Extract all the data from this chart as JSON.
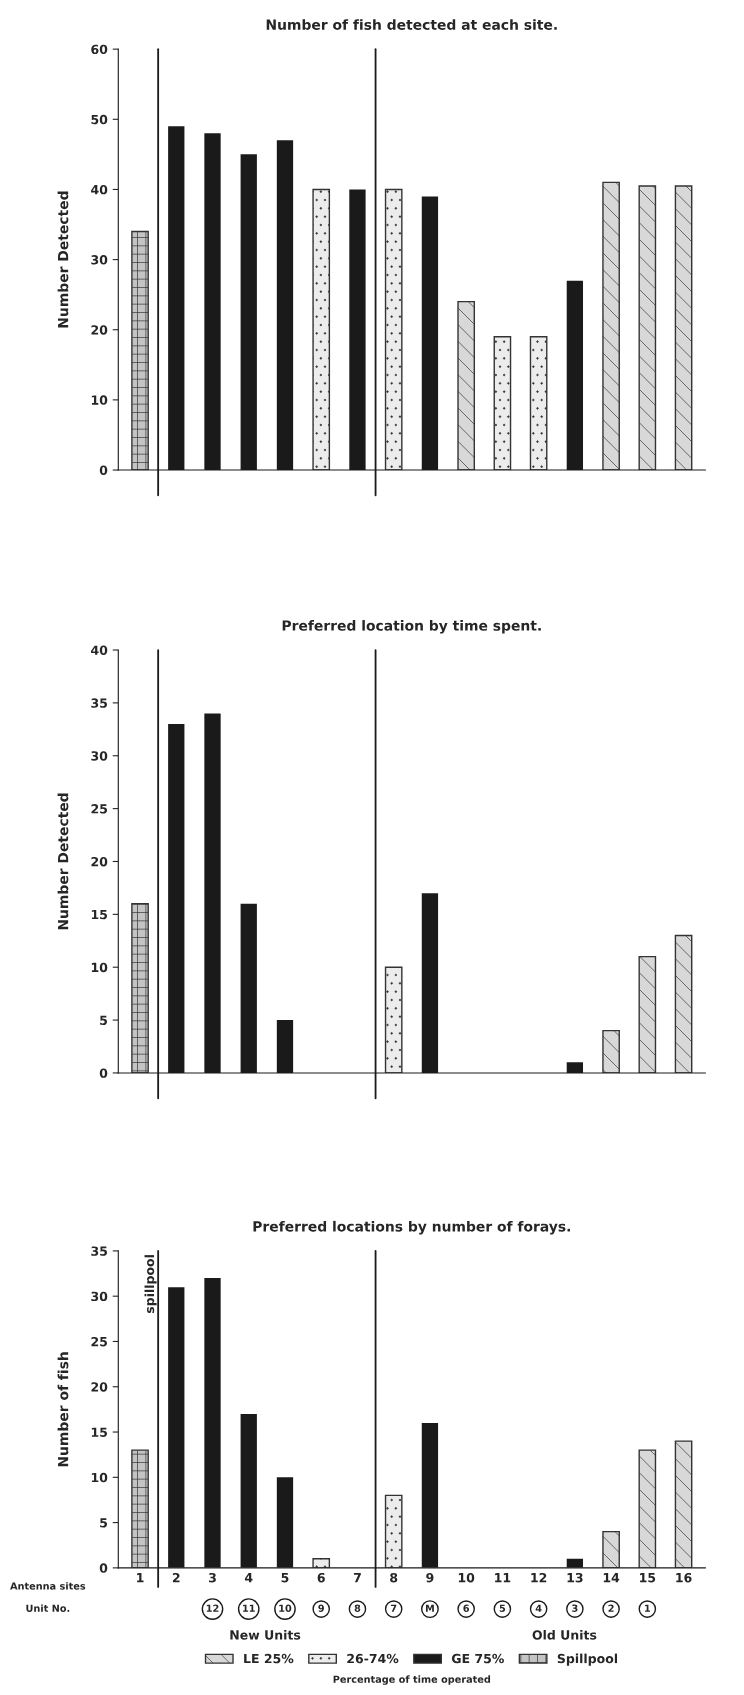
{
  "chart_data": [
    {
      "type": "bar",
      "title": "Number of fish detected at each site.",
      "ylabel": "Number Detected",
      "x": [
        1,
        2,
        3,
        4,
        5,
        6,
        7,
        8,
        9,
        10,
        11,
        12,
        13,
        14,
        15,
        16
      ],
      "xlim": [
        0.4,
        16.6
      ],
      "ylim": [
        0,
        60
      ],
      "yticks": [
        0,
        10,
        20,
        30,
        40,
        50,
        60
      ],
      "series": [
        {
          "color": "#d8d8d8",
          "values": [
            null,
            null,
            null,
            null,
            null,
            null,
            null,
            null,
            null,
            24,
            null,
            null,
            null,
            41,
            40.5,
            40.5
          ]
        },
        {
          "color": "#ececec",
          "values": [
            null,
            null,
            null,
            null,
            null,
            40,
            null,
            40,
            null,
            null,
            19,
            19,
            null,
            null,
            null,
            null
          ]
        },
        {
          "color": "#1a1a1a",
          "values": [
            null,
            49,
            48,
            45,
            47,
            null,
            40,
            null,
            39,
            null,
            null,
            null,
            27,
            null,
            null,
            null
          ]
        },
        {
          "color": "#c4c4c4",
          "values": [
            34,
            null,
            null,
            null,
            null,
            null,
            null,
            null,
            null,
            null,
            null,
            null,
            null,
            null,
            null,
            null
          ]
        }
      ],
      "ref_lines": [
        {
          "axis": "x",
          "value": 1.5
        },
        {
          "axis": "x",
          "value": 7.5
        }
      ],
      "tick_labels": "y",
      "grid": false,
      "legend": false
    },
    {
      "type": "bar",
      "title": "Preferred location by time spent.",
      "ylabel": "Number Detected",
      "x": [
        1,
        2,
        3,
        4,
        5,
        6,
        7,
        8,
        9,
        10,
        11,
        12,
        13,
        14,
        15,
        16
      ],
      "xlim": [
        0.4,
        16.6
      ],
      "ylim": [
        0,
        40
      ],
      "yticks": [
        0,
        5,
        10,
        15,
        20,
        25,
        30,
        35,
        40
      ],
      "series": [
        {
          "color": "#d8d8d8",
          "values": [
            null,
            null,
            null,
            null,
            null,
            null,
            null,
            null,
            null,
            0,
            null,
            null,
            null,
            4,
            11,
            13
          ]
        },
        {
          "color": "#ececec",
          "values": [
            null,
            null,
            null,
            null,
            null,
            0,
            null,
            10,
            null,
            null,
            0,
            0,
            null,
            null,
            null,
            null
          ]
        },
        {
          "color": "#1a1a1a",
          "values": [
            null,
            33,
            34,
            16,
            5,
            null,
            0,
            null,
            17,
            null,
            null,
            null,
            1,
            null,
            null,
            null
          ]
        },
        {
          "color": "#c4c4c4",
          "values": [
            16,
            null,
            null,
            null,
            null,
            null,
            null,
            null,
            null,
            null,
            null,
            null,
            null,
            null,
            null,
            null
          ]
        }
      ],
      "ref_lines": [
        {
          "axis": "x",
          "value": 1.5
        },
        {
          "axis": "x",
          "value": 7.5
        }
      ],
      "tick_labels": "y",
      "grid": false,
      "legend": false
    },
    {
      "type": "bar",
      "title": "Preferred locations by number of forays.",
      "ylabel": "Number of fish",
      "xlabel": "Antenna sites",
      "legend_title": "Percentage of time operated",
      "x": [
        1,
        2,
        3,
        4,
        5,
        6,
        7,
        8,
        9,
        10,
        11,
        12,
        13,
        14,
        15,
        16
      ],
      "xlim": [
        0.4,
        16.6
      ],
      "xticks": [
        1,
        2,
        3,
        4,
        5,
        6,
        7,
        8,
        9,
        10,
        11,
        12,
        13,
        14,
        15,
        16
      ],
      "ylim": [
        0,
        35
      ],
      "yticks": [
        0,
        5,
        10,
        15,
        20,
        25,
        30,
        35
      ],
      "series": [
        {
          "name": "LE 25%",
          "color": "#d8d8d8",
          "values": [
            null,
            null,
            null,
            null,
            null,
            null,
            null,
            null,
            null,
            0,
            null,
            null,
            null,
            4,
            13,
            14
          ]
        },
        {
          "name": "26-74%",
          "color": "#ececec",
          "values": [
            null,
            null,
            null,
            null,
            null,
            1,
            null,
            8,
            null,
            null,
            0,
            0,
            null,
            null,
            null,
            null
          ]
        },
        {
          "name": "GE 75%",
          "color": "#1a1a1a",
          "values": [
            null,
            31,
            32,
            17,
            10,
            null,
            0,
            null,
            16,
            null,
            null,
            null,
            1,
            null,
            null,
            null
          ]
        },
        {
          "name": "Spillpool",
          "color": "#c4c4c4",
          "values": [
            13,
            null,
            null,
            null,
            null,
            null,
            null,
            null,
            null,
            null,
            null,
            null,
            null,
            null,
            null,
            null
          ]
        }
      ],
      "ref_lines": [
        {
          "axis": "x",
          "value": 1.5
        },
        {
          "axis": "x",
          "value": 7.5
        }
      ],
      "annotations": [
        "spillpool",
        "Unit No.",
        "New Units",
        "Old Units",
        "12",
        "11",
        "10",
        "9",
        "8",
        "7",
        "M",
        "6",
        "5",
        "4",
        "3",
        "2",
        "1"
      ],
      "grid": false,
      "legend": "bottom"
    }
  ]
}
